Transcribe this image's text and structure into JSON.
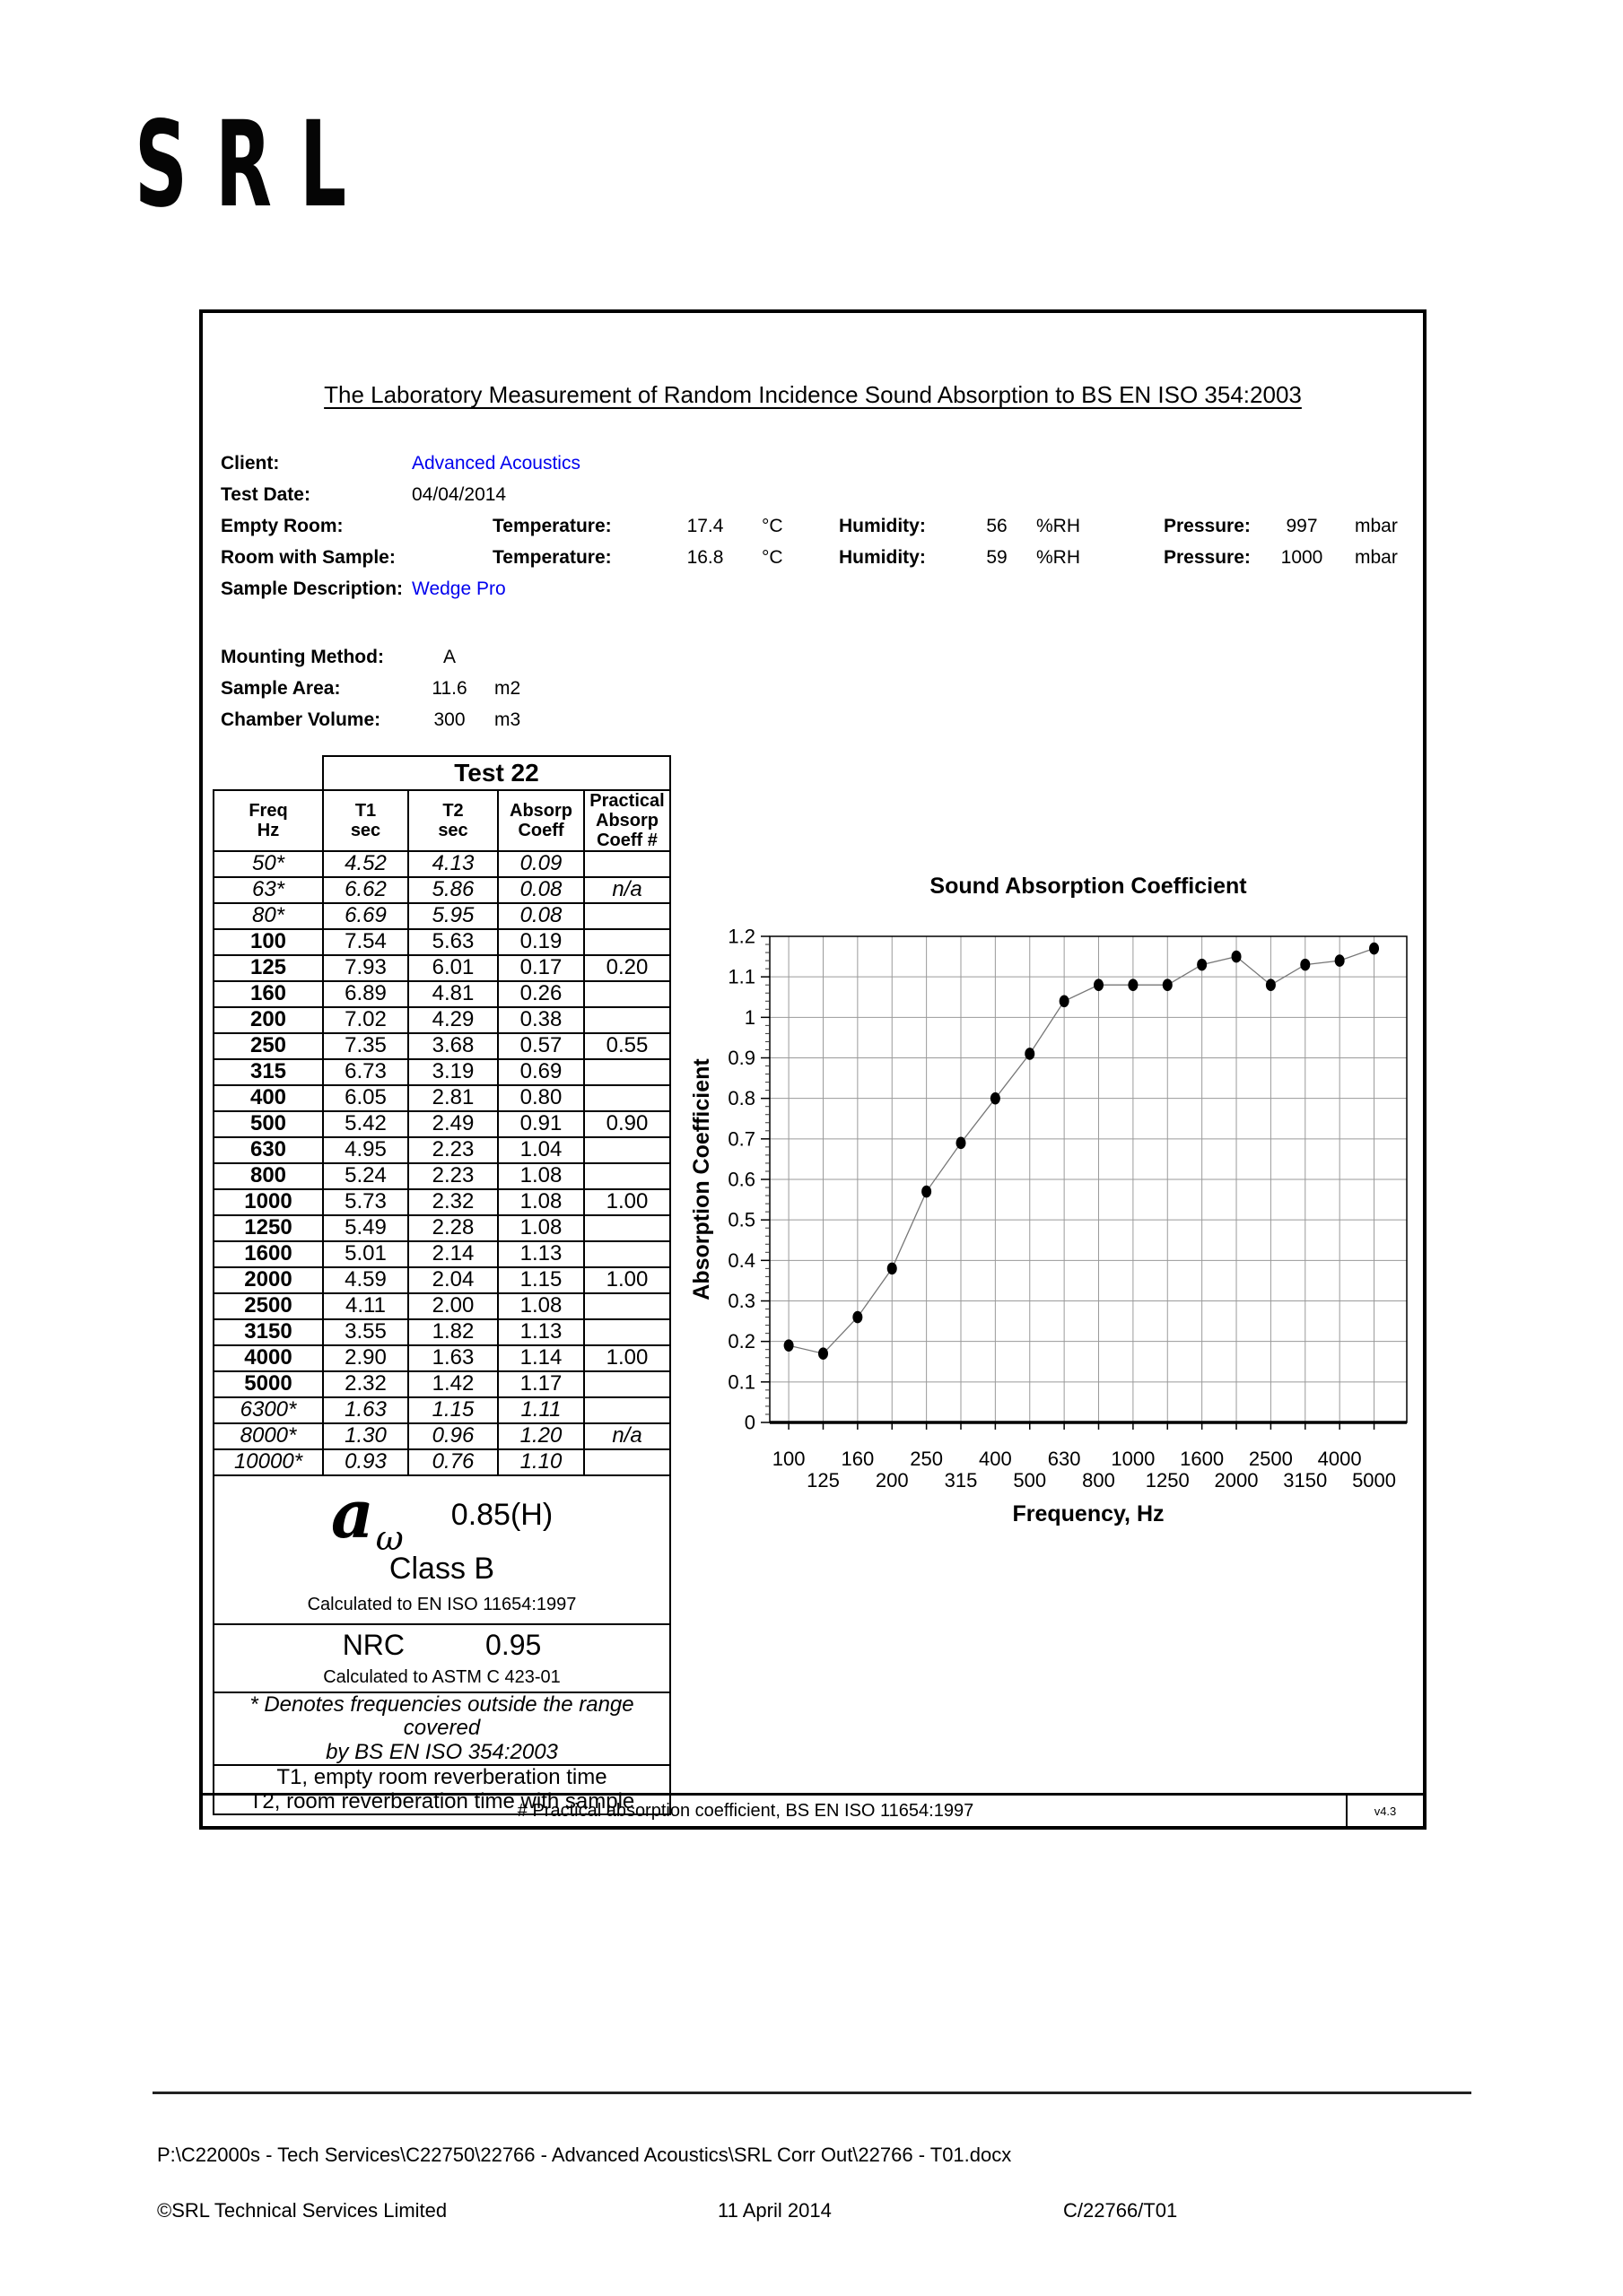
{
  "logo": {
    "text": "SRL"
  },
  "report": {
    "title": "The Laboratory Measurement of Random Incidence Sound Absorption to BS EN ISO 354:2003",
    "client_label": "Client:",
    "client": "Advanced Acoustics",
    "test_date_label": "Test Date:",
    "test_date": "04/04/2014",
    "empty_room_label": "Empty Room:",
    "room_with_sample_label": "Room with Sample:",
    "temperature_label": "Temperature:",
    "humidity_label": "Humidity:",
    "pressure_label": "Pressure:",
    "empty_room": {
      "temperature": "17.4",
      "temp_unit": "°C",
      "humidity": "56",
      "humidity_unit": "%RH",
      "pressure": "997",
      "pressure_unit": "mbar"
    },
    "room_with_sample": {
      "temperature": "16.8",
      "temp_unit": "°C",
      "humidity": "59",
      "humidity_unit": "%RH",
      "pressure": "1000",
      "pressure_unit": "mbar"
    },
    "sample_description_label": "Sample Description:",
    "sample_description": "Wedge Pro",
    "mounting_method_label": "Mounting Method:",
    "mounting_method": "A",
    "sample_area_label": "Sample Area:",
    "sample_area": "11.6",
    "sample_area_unit": "m2",
    "chamber_volume_label": "Chamber Volume:",
    "chamber_volume": "300",
    "chamber_volume_unit": "m3"
  },
  "table": {
    "test_label": "Test 22",
    "headers": {
      "freq": [
        "Freq",
        "Hz"
      ],
      "t1": [
        "T1",
        "sec"
      ],
      "t2": [
        "T2",
        "sec"
      ],
      "coeff": [
        "Absorp",
        "Coeff"
      ],
      "practical": [
        "Practical",
        "Absorp",
        "Coeff #"
      ]
    },
    "rows": [
      {
        "freq": "50*",
        "t1": "4.52",
        "t2": "4.13",
        "coeff": "0.09",
        "practical": "",
        "starred": true
      },
      {
        "freq": "63*",
        "t1": "6.62",
        "t2": "5.86",
        "coeff": "0.08",
        "practical": "n/a",
        "starred": true
      },
      {
        "freq": "80*",
        "t1": "6.69",
        "t2": "5.95",
        "coeff": "0.08",
        "practical": "",
        "starred": true
      },
      {
        "freq": "100",
        "t1": "7.54",
        "t2": "5.63",
        "coeff": "0.19",
        "practical": "",
        "starred": false
      },
      {
        "freq": "125",
        "t1": "7.93",
        "t2": "6.01",
        "coeff": "0.17",
        "practical": "0.20",
        "starred": false
      },
      {
        "freq": "160",
        "t1": "6.89",
        "t2": "4.81",
        "coeff": "0.26",
        "practical": "",
        "starred": false
      },
      {
        "freq": "200",
        "t1": "7.02",
        "t2": "4.29",
        "coeff": "0.38",
        "practical": "",
        "starred": false
      },
      {
        "freq": "250",
        "t1": "7.35",
        "t2": "3.68",
        "coeff": "0.57",
        "practical": "0.55",
        "starred": false
      },
      {
        "freq": "315",
        "t1": "6.73",
        "t2": "3.19",
        "coeff": "0.69",
        "practical": "",
        "starred": false
      },
      {
        "freq": "400",
        "t1": "6.05",
        "t2": "2.81",
        "coeff": "0.80",
        "practical": "",
        "starred": false
      },
      {
        "freq": "500",
        "t1": "5.42",
        "t2": "2.49",
        "coeff": "0.91",
        "practical": "0.90",
        "starred": false
      },
      {
        "freq": "630",
        "t1": "4.95",
        "t2": "2.23",
        "coeff": "1.04",
        "practical": "",
        "starred": false
      },
      {
        "freq": "800",
        "t1": "5.24",
        "t2": "2.23",
        "coeff": "1.08",
        "practical": "",
        "starred": false
      },
      {
        "freq": "1000",
        "t1": "5.73",
        "t2": "2.32",
        "coeff": "1.08",
        "practical": "1.00",
        "starred": false
      },
      {
        "freq": "1250",
        "t1": "5.49",
        "t2": "2.28",
        "coeff": "1.08",
        "practical": "",
        "starred": false
      },
      {
        "freq": "1600",
        "t1": "5.01",
        "t2": "2.14",
        "coeff": "1.13",
        "practical": "",
        "starred": false
      },
      {
        "freq": "2000",
        "t1": "4.59",
        "t2": "2.04",
        "coeff": "1.15",
        "practical": "1.00",
        "starred": false
      },
      {
        "freq": "2500",
        "t1": "4.11",
        "t2": "2.00",
        "coeff": "1.08",
        "practical": "",
        "starred": false
      },
      {
        "freq": "3150",
        "t1": "3.55",
        "t2": "1.82",
        "coeff": "1.13",
        "practical": "",
        "starred": false
      },
      {
        "freq": "4000",
        "t1": "2.90",
        "t2": "1.63",
        "coeff": "1.14",
        "practical": "1.00",
        "starred": false
      },
      {
        "freq": "5000",
        "t1": "2.32",
        "t2": "1.42",
        "coeff": "1.17",
        "practical": "",
        "starred": false
      },
      {
        "freq": "6300*",
        "t1": "1.63",
        "t2": "1.15",
        "coeff": "1.11",
        "practical": "",
        "starred": true
      },
      {
        "freq": "8000*",
        "t1": "1.30",
        "t2": "0.96",
        "coeff": "1.20",
        "practical": "n/a",
        "starred": true
      },
      {
        "freq": "10000*",
        "t1": "0.93",
        "t2": "0.76",
        "coeff": "1.10",
        "practical": "",
        "starred": true
      }
    ],
    "alpha_w": {
      "symbol": "a",
      "subscript": "ω",
      "value": "0.85(H)",
      "class": "Class B",
      "standard": "Calculated to EN ISO 11654:1997"
    },
    "nrc": {
      "label": "NRC",
      "value": "0.95",
      "standard": "Calculated to ASTM C 423-01"
    },
    "footnote_star": [
      "* Denotes frequencies outside the range covered",
      "by BS EN ISO 354:2003"
    ],
    "footnote_t": [
      "T1, empty room reverberation time",
      "T2, room reverberation time with sample"
    ],
    "practical_note": "# Practical absorption coefficient, BS EN ISO 11654:1997",
    "version": "v4.3"
  },
  "chart_data": {
    "type": "line",
    "title": "Sound Absorption Coefficient",
    "xlabel": "Frequency, Hz",
    "ylabel": "Absorption Coefficient",
    "categories": [
      "100",
      "125",
      "160",
      "200",
      "250",
      "315",
      "400",
      "500",
      "630",
      "800",
      "1000",
      "1250",
      "1600",
      "2000",
      "2500",
      "3150",
      "4000",
      "5000"
    ],
    "values": [
      0.19,
      0.17,
      0.26,
      0.38,
      0.57,
      0.69,
      0.8,
      0.91,
      1.04,
      1.08,
      1.08,
      1.08,
      1.13,
      1.15,
      1.08,
      1.13,
      1.14,
      1.17
    ],
    "ylim": [
      0,
      1.2
    ],
    "ytick_step": 0.1,
    "grid": true,
    "legend": "none",
    "marker": "filled-circle",
    "line_color": "#777777",
    "marker_color": "#000000",
    "grid_color": "#9a9a9a"
  },
  "footer": {
    "path": "P:\\C22000s - Tech Services\\C22750\\22766 - Advanced Acoustics\\SRL Corr Out\\22766 - T01.docx",
    "copyright": "©SRL Technical Services Limited",
    "date": "11 April 2014",
    "reference": "C/22766/T01"
  }
}
